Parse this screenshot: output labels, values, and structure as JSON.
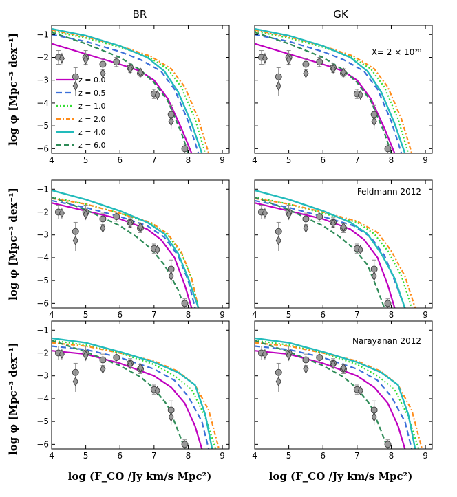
{
  "figure": {
    "col_titles": [
      "BR",
      "GK"
    ],
    "ylabel": "log φ [Mpc⁻³ dex⁻¹]",
    "xlabel": "log (F_CO /Jy km/s Mpc²)",
    "annotations": [
      "X= 2 × 10²⁰",
      "Feldmann 2012",
      "Narayanan 2012"
    ]
  },
  "chart_data": {
    "type": "line",
    "xlim": [
      4,
      9.2
    ],
    "ylim": [
      -6.2,
      -0.6
    ],
    "xticks": [
      4,
      5,
      6,
      7,
      8,
      9
    ],
    "yticks": [
      -1,
      -2,
      -3,
      -4,
      -5,
      -6
    ],
    "grid": false,
    "legend": {
      "panel": "BR / X factor",
      "placement": "center-left",
      "entries": [
        "z = 0.0",
        "z = 0.5",
        "z = 1.0",
        "z = 2.0",
        "z = 4.0",
        "z = 6.0"
      ]
    },
    "series_styles": [
      {
        "name": "z = 0.0",
        "color": "#bf00bf",
        "dash": "solid",
        "width": 2.2
      },
      {
        "name": "z = 0.5",
        "color": "#3b6fd9",
        "dash": "8,5",
        "width": 2.2
      },
      {
        "name": "z = 1.0",
        "color": "#33dd33",
        "dash": "2,3",
        "width": 2.2
      },
      {
        "name": "z = 2.0",
        "color": "#ff8c1a",
        "dash": "6,3,2,3",
        "width": 2.2
      },
      {
        "name": "z = 4.0",
        "color": "#22bbbb",
        "dash": "solid",
        "width": 2.4
      },
      {
        "name": "z = 6.0",
        "color": "#2e8b57",
        "dash": "7,4",
        "width": 2.2
      }
    ],
    "observations": {
      "circles": [
        [
          4.2,
          -2.0
        ],
        [
          4.7,
          -2.85
        ],
        [
          5.0,
          -2.0
        ],
        [
          5.5,
          -2.3
        ],
        [
          5.9,
          -2.2
        ],
        [
          6.3,
          -2.45
        ],
        [
          6.6,
          -2.7
        ],
        [
          7.0,
          -3.6
        ],
        [
          7.5,
          -4.5
        ],
        [
          7.9,
          -6.0
        ]
      ],
      "circle_err": [
        0.3,
        0.4,
        0.3,
        0.25,
        0.2,
        0.2,
        0.2,
        0.2,
        0.4,
        0.2
      ],
      "diamonds": [
        [
          4.3,
          -2.05
        ],
        [
          4.7,
          -3.25
        ],
        [
          5.0,
          -2.1
        ],
        [
          5.5,
          -2.7
        ],
        [
          6.3,
          -2.5
        ],
        [
          6.6,
          -2.65
        ],
        [
          7.1,
          -3.65
        ],
        [
          7.5,
          -4.8
        ]
      ],
      "diamond_err": [
        0.25,
        0.45,
        0.25,
        0.2,
        0.15,
        0.15,
        0.2,
        0.35
      ]
    },
    "panels": [
      {
        "row": 0,
        "col": 0,
        "series": [
          {
            "name": "z = 0.0",
            "x": [
              4.0,
              5.0,
              6.0,
              6.6,
              7.0,
              7.4,
              7.8,
              8.1
            ],
            "y": [
              -1.4,
              -1.85,
              -2.3,
              -2.6,
              -3.0,
              -3.8,
              -5.1,
              -6.2
            ]
          },
          {
            "name": "z = 0.5",
            "x": [
              4.0,
              5.0,
              6.0,
              6.6,
              7.2,
              7.6,
              8.0,
              8.3
            ],
            "y": [
              -1.0,
              -1.3,
              -1.75,
              -2.1,
              -2.6,
              -3.4,
              -4.8,
              -6.2
            ]
          },
          {
            "name": "z = 1.0",
            "x": [
              4.0,
              5.0,
              6.0,
              6.8,
              7.4,
              7.8,
              8.2,
              8.5
            ],
            "y": [
              -0.85,
              -1.15,
              -1.55,
              -1.95,
              -2.5,
              -3.3,
              -4.7,
              -6.2
            ]
          },
          {
            "name": "z = 2.0",
            "x": [
              4.0,
              5.0,
              6.0,
              6.9,
              7.5,
              7.9,
              8.3,
              8.6
            ],
            "y": [
              -0.8,
              -1.1,
              -1.5,
              -1.95,
              -2.5,
              -3.3,
              -4.7,
              -6.2
            ]
          },
          {
            "name": "z = 4.0",
            "x": [
              4.0,
              5.0,
              6.0,
              6.8,
              7.3,
              7.7,
              8.1,
              8.4
            ],
            "y": [
              -0.75,
              -1.05,
              -1.5,
              -2.0,
              -2.6,
              -3.5,
              -4.9,
              -6.2
            ]
          },
          {
            "name": "z = 6.0",
            "x": [
              4.0,
              5.0,
              6.0,
              6.6,
              7.0,
              7.4,
              7.8,
              8.0
            ],
            "y": [
              -0.9,
              -1.4,
              -2.0,
              -2.55,
              -3.1,
              -3.9,
              -5.3,
              -6.2
            ]
          }
        ]
      },
      {
        "row": 0,
        "col": 1,
        "series": [
          {
            "name": "z = 0.0",
            "x": [
              4.0,
              5.0,
              6.0,
              6.6,
              7.0,
              7.4,
              7.8,
              8.1
            ],
            "y": [
              -1.4,
              -1.85,
              -2.3,
              -2.6,
              -3.0,
              -3.8,
              -5.1,
              -6.2
            ]
          },
          {
            "name": "z = 0.5",
            "x": [
              4.0,
              5.0,
              6.0,
              6.6,
              7.2,
              7.6,
              8.0,
              8.3
            ],
            "y": [
              -1.0,
              -1.3,
              -1.75,
              -2.1,
              -2.6,
              -3.4,
              -4.8,
              -6.2
            ]
          },
          {
            "name": "z = 1.0",
            "x": [
              4.0,
              5.0,
              6.0,
              6.8,
              7.4,
              7.8,
              8.2,
              8.5
            ],
            "y": [
              -0.85,
              -1.15,
              -1.55,
              -1.95,
              -2.5,
              -3.3,
              -4.7,
              -6.2
            ]
          },
          {
            "name": "z = 2.0",
            "x": [
              4.0,
              5.0,
              6.0,
              6.9,
              7.5,
              7.9,
              8.3,
              8.6
            ],
            "y": [
              -0.8,
              -1.1,
              -1.5,
              -1.95,
              -2.5,
              -3.3,
              -4.7,
              -6.2
            ]
          },
          {
            "name": "z = 4.0",
            "x": [
              4.0,
              5.0,
              6.0,
              6.8,
              7.3,
              7.7,
              8.1,
              8.4
            ],
            "y": [
              -0.75,
              -1.05,
              -1.5,
              -2.0,
              -2.6,
              -3.5,
              -4.9,
              -6.2
            ]
          },
          {
            "name": "z = 6.0",
            "x": [
              4.0,
              5.0,
              6.0,
              6.6,
              7.0,
              7.4,
              7.8,
              8.0
            ],
            "y": [
              -0.9,
              -1.4,
              -2.0,
              -2.55,
              -3.1,
              -3.9,
              -5.3,
              -6.2
            ]
          }
        ]
      },
      {
        "row": 1,
        "col": 0,
        "series": [
          {
            "name": "z = 0.0",
            "x": [
              4.0,
              5.0,
              6.0,
              6.8,
              7.2,
              7.6,
              7.9,
              8.1
            ],
            "y": [
              -1.6,
              -1.95,
              -2.3,
              -2.75,
              -3.2,
              -4.0,
              -5.2,
              -6.2
            ]
          },
          {
            "name": "z = 0.5",
            "x": [
              4.0,
              5.0,
              6.0,
              6.8,
              7.3,
              7.7,
              8.0,
              8.2
            ],
            "y": [
              -1.5,
              -1.8,
              -2.2,
              -2.6,
              -3.1,
              -3.9,
              -5.0,
              -6.2
            ]
          },
          {
            "name": "z = 1.0",
            "x": [
              4.0,
              5.0,
              6.0,
              6.9,
              7.4,
              7.8,
              8.1,
              8.3
            ],
            "y": [
              -1.35,
              -1.65,
              -2.05,
              -2.5,
              -3.0,
              -3.8,
              -4.9,
              -6.2
            ]
          },
          {
            "name": "z = 2.0",
            "x": [
              4.0,
              5.0,
              6.0,
              6.9,
              7.4,
              7.8,
              8.1,
              8.3
            ],
            "y": [
              -1.4,
              -1.65,
              -2.05,
              -2.45,
              -2.95,
              -3.75,
              -4.9,
              -6.2
            ]
          },
          {
            "name": "z = 4.0",
            "x": [
              4.0,
              5.0,
              6.0,
              6.8,
              7.3,
              7.7,
              8.0,
              8.3
            ],
            "y": [
              -1.05,
              -1.45,
              -1.95,
              -2.45,
              -2.95,
              -3.8,
              -4.9,
              -6.2
            ]
          },
          {
            "name": "z = 6.0",
            "x": [
              4.0,
              5.0,
              6.0,
              6.5,
              6.9,
              7.3,
              7.7,
              7.9
            ],
            "y": [
              -1.35,
              -1.9,
              -2.6,
              -3.1,
              -3.6,
              -4.3,
              -5.4,
              -6.2
            ]
          }
        ]
      },
      {
        "row": 1,
        "col": 1,
        "series": [
          {
            "name": "z = 0.0",
            "x": [
              4.0,
              5.0,
              6.0,
              6.8,
              7.2,
              7.6,
              7.9,
              8.1
            ],
            "y": [
              -1.6,
              -1.95,
              -2.3,
              -2.75,
              -3.2,
              -4.0,
              -5.2,
              -6.2
            ]
          },
          {
            "name": "z = 0.5",
            "x": [
              4.0,
              5.0,
              6.0,
              6.9,
              7.4,
              7.8,
              8.1,
              8.4
            ],
            "y": [
              -1.5,
              -1.8,
              -2.2,
              -2.6,
              -3.1,
              -3.9,
              -5.0,
              -6.2
            ]
          },
          {
            "name": "z = 1.0",
            "x": [
              4.0,
              5.0,
              6.0,
              7.0,
              7.5,
              7.9,
              8.3,
              8.6
            ],
            "y": [
              -1.35,
              -1.65,
              -2.05,
              -2.45,
              -2.95,
              -3.7,
              -4.8,
              -6.2
            ]
          },
          {
            "name": "z = 2.0",
            "x": [
              4.0,
              5.0,
              6.0,
              7.0,
              7.6,
              8.0,
              8.4,
              8.7
            ],
            "y": [
              -1.4,
              -1.65,
              -2.0,
              -2.4,
              -2.9,
              -3.7,
              -4.8,
              -6.2
            ]
          },
          {
            "name": "z = 4.0",
            "x": [
              4.0,
              5.0,
              6.0,
              6.8,
              7.3,
              7.7,
              8.1,
              8.4
            ],
            "y": [
              -1.05,
              -1.45,
              -1.95,
              -2.45,
              -2.95,
              -3.8,
              -4.9,
              -6.2
            ]
          },
          {
            "name": "z = 6.0",
            "x": [
              4.0,
              5.0,
              6.0,
              6.5,
              6.9,
              7.3,
              7.6,
              7.8
            ],
            "y": [
              -1.35,
              -1.9,
              -2.6,
              -3.1,
              -3.6,
              -4.3,
              -5.4,
              -6.2
            ]
          }
        ]
      },
      {
        "row": 2,
        "col": 0,
        "series": [
          {
            "name": "z = 0.0",
            "x": [
              4.0,
              5.0,
              6.0,
              7.0,
              7.5,
              7.9,
              8.2,
              8.4
            ],
            "y": [
              -1.9,
              -2.05,
              -2.45,
              -3.0,
              -3.5,
              -4.2,
              -5.2,
              -6.2
            ]
          },
          {
            "name": "z = 0.5",
            "x": [
              4.0,
              5.0,
              6.0,
              7.0,
              7.6,
              8.0,
              8.4,
              8.6
            ],
            "y": [
              -1.7,
              -1.85,
              -2.2,
              -2.7,
              -3.2,
              -3.9,
              -5.0,
              -6.2
            ]
          },
          {
            "name": "z = 1.0",
            "x": [
              4.0,
              5.0,
              6.0,
              7.0,
              7.6,
              8.1,
              8.5,
              8.8
            ],
            "y": [
              -1.45,
              -1.65,
              -2.0,
              -2.5,
              -3.0,
              -3.6,
              -4.8,
              -6.2
            ]
          },
          {
            "name": "z = 2.0",
            "x": [
              4.0,
              5.0,
              6.0,
              7.0,
              7.7,
              8.2,
              8.6,
              8.9
            ],
            "y": [
              -1.55,
              -1.7,
              -2.0,
              -2.35,
              -2.8,
              -3.4,
              -4.5,
              -6.2
            ]
          },
          {
            "name": "z = 4.0",
            "x": [
              4.0,
              5.0,
              6.0,
              7.0,
              7.7,
              8.2,
              8.5,
              8.7
            ],
            "y": [
              -1.35,
              -1.55,
              -1.95,
              -2.4,
              -2.85,
              -3.4,
              -4.7,
              -6.2
            ]
          },
          {
            "name": "z = 6.0",
            "x": [
              4.0,
              5.0,
              6.0,
              6.6,
              7.0,
              7.4,
              7.7,
              7.9
            ],
            "y": [
              -1.45,
              -1.95,
              -2.55,
              -3.05,
              -3.55,
              -4.3,
              -5.4,
              -6.2
            ]
          }
        ]
      },
      {
        "row": 2,
        "col": 1,
        "series": [
          {
            "name": "z = 0.0",
            "x": [
              4.0,
              5.0,
              6.0,
              7.0,
              7.5,
              7.9,
              8.2,
              8.4
            ],
            "y": [
              -1.9,
              -2.05,
              -2.45,
              -3.0,
              -3.5,
              -4.2,
              -5.2,
              -6.2
            ]
          },
          {
            "name": "z = 0.5",
            "x": [
              4.0,
              5.0,
              6.0,
              7.0,
              7.6,
              8.0,
              8.4,
              8.6
            ],
            "y": [
              -1.7,
              -1.85,
              -2.2,
              -2.7,
              -3.2,
              -3.9,
              -5.0,
              -6.2
            ]
          },
          {
            "name": "z = 1.0",
            "x": [
              4.0,
              5.0,
              6.0,
              7.0,
              7.6,
              8.1,
              8.5,
              8.8
            ],
            "y": [
              -1.45,
              -1.65,
              -2.0,
              -2.5,
              -3.0,
              -3.6,
              -4.8,
              -6.2
            ]
          },
          {
            "name": "z = 2.0",
            "x": [
              4.0,
              5.0,
              6.0,
              7.0,
              7.7,
              8.2,
              8.6,
              8.9
            ],
            "y": [
              -1.55,
              -1.7,
              -2.0,
              -2.35,
              -2.8,
              -3.4,
              -4.5,
              -6.2
            ]
          },
          {
            "name": "z = 4.0",
            "x": [
              4.0,
              5.0,
              6.0,
              7.0,
              7.7,
              8.2,
              8.5,
              8.7
            ],
            "y": [
              -1.35,
              -1.55,
              -1.95,
              -2.4,
              -2.85,
              -3.4,
              -4.7,
              -6.2
            ]
          },
          {
            "name": "z = 6.0",
            "x": [
              4.0,
              5.0,
              6.0,
              6.6,
              7.0,
              7.4,
              7.7,
              7.9
            ],
            "y": [
              -1.45,
              -1.95,
              -2.55,
              -3.05,
              -3.55,
              -4.3,
              -5.4,
              -6.2
            ]
          }
        ]
      }
    ]
  }
}
